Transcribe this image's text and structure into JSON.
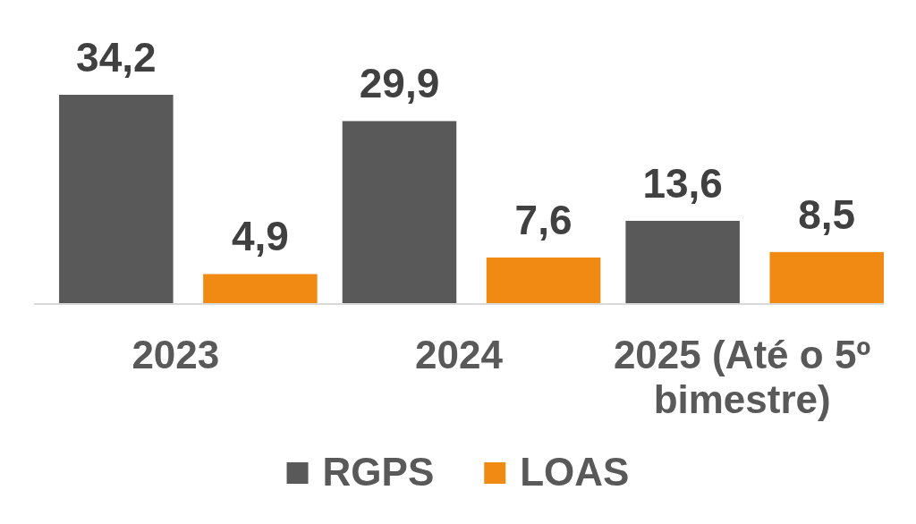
{
  "chart_data": {
    "type": "bar",
    "categories": [
      "2023",
      "2024",
      "2025 (Até o 5º bimestre)"
    ],
    "series": [
      {
        "name": "RGPS",
        "color": "#595959",
        "values": [
          34.2,
          29.9,
          13.6
        ],
        "value_labels": [
          "34,2",
          "29,9",
          "13,6"
        ]
      },
      {
        "name": "LOAS",
        "color": "#f08a12",
        "values": [
          4.9,
          7.6,
          8.5
        ],
        "value_labels": [
          "4,9",
          "7,6",
          "8,5"
        ]
      }
    ],
    "legend": "bottom"
  }
}
